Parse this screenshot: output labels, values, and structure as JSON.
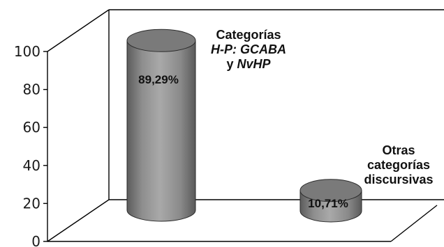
{
  "chart_data": {
    "type": "bar",
    "style": "3d-cylinder",
    "categories": [
      {
        "lines": [
          [
            {
              "text": "Categorías",
              "italic": false
            }
          ],
          [
            {
              "text": "H-P: GCABA",
              "italic": true
            }
          ],
          [
            {
              "text": "y ",
              "italic": false
            },
            {
              "text": "NvHP",
              "italic": true
            }
          ]
        ]
      },
      {
        "lines": [
          [
            {
              "text": "Otras",
              "italic": false
            }
          ],
          [
            {
              "text": "categorías",
              "italic": false
            }
          ],
          [
            {
              "text": "discursivas",
              "italic": false
            }
          ]
        ]
      }
    ],
    "values": [
      89.29,
      10.71
    ],
    "data_labels": [
      "89,29%",
      "10,71%"
    ],
    "yticks": [
      "0",
      "20",
      "40",
      "60",
      "80",
      "100"
    ],
    "ylim": [
      0,
      100
    ],
    "grid": false,
    "colors": {
      "bar": "#8c8c8c",
      "bar_top": "#7a7a7a",
      "frame": "#000000"
    }
  }
}
